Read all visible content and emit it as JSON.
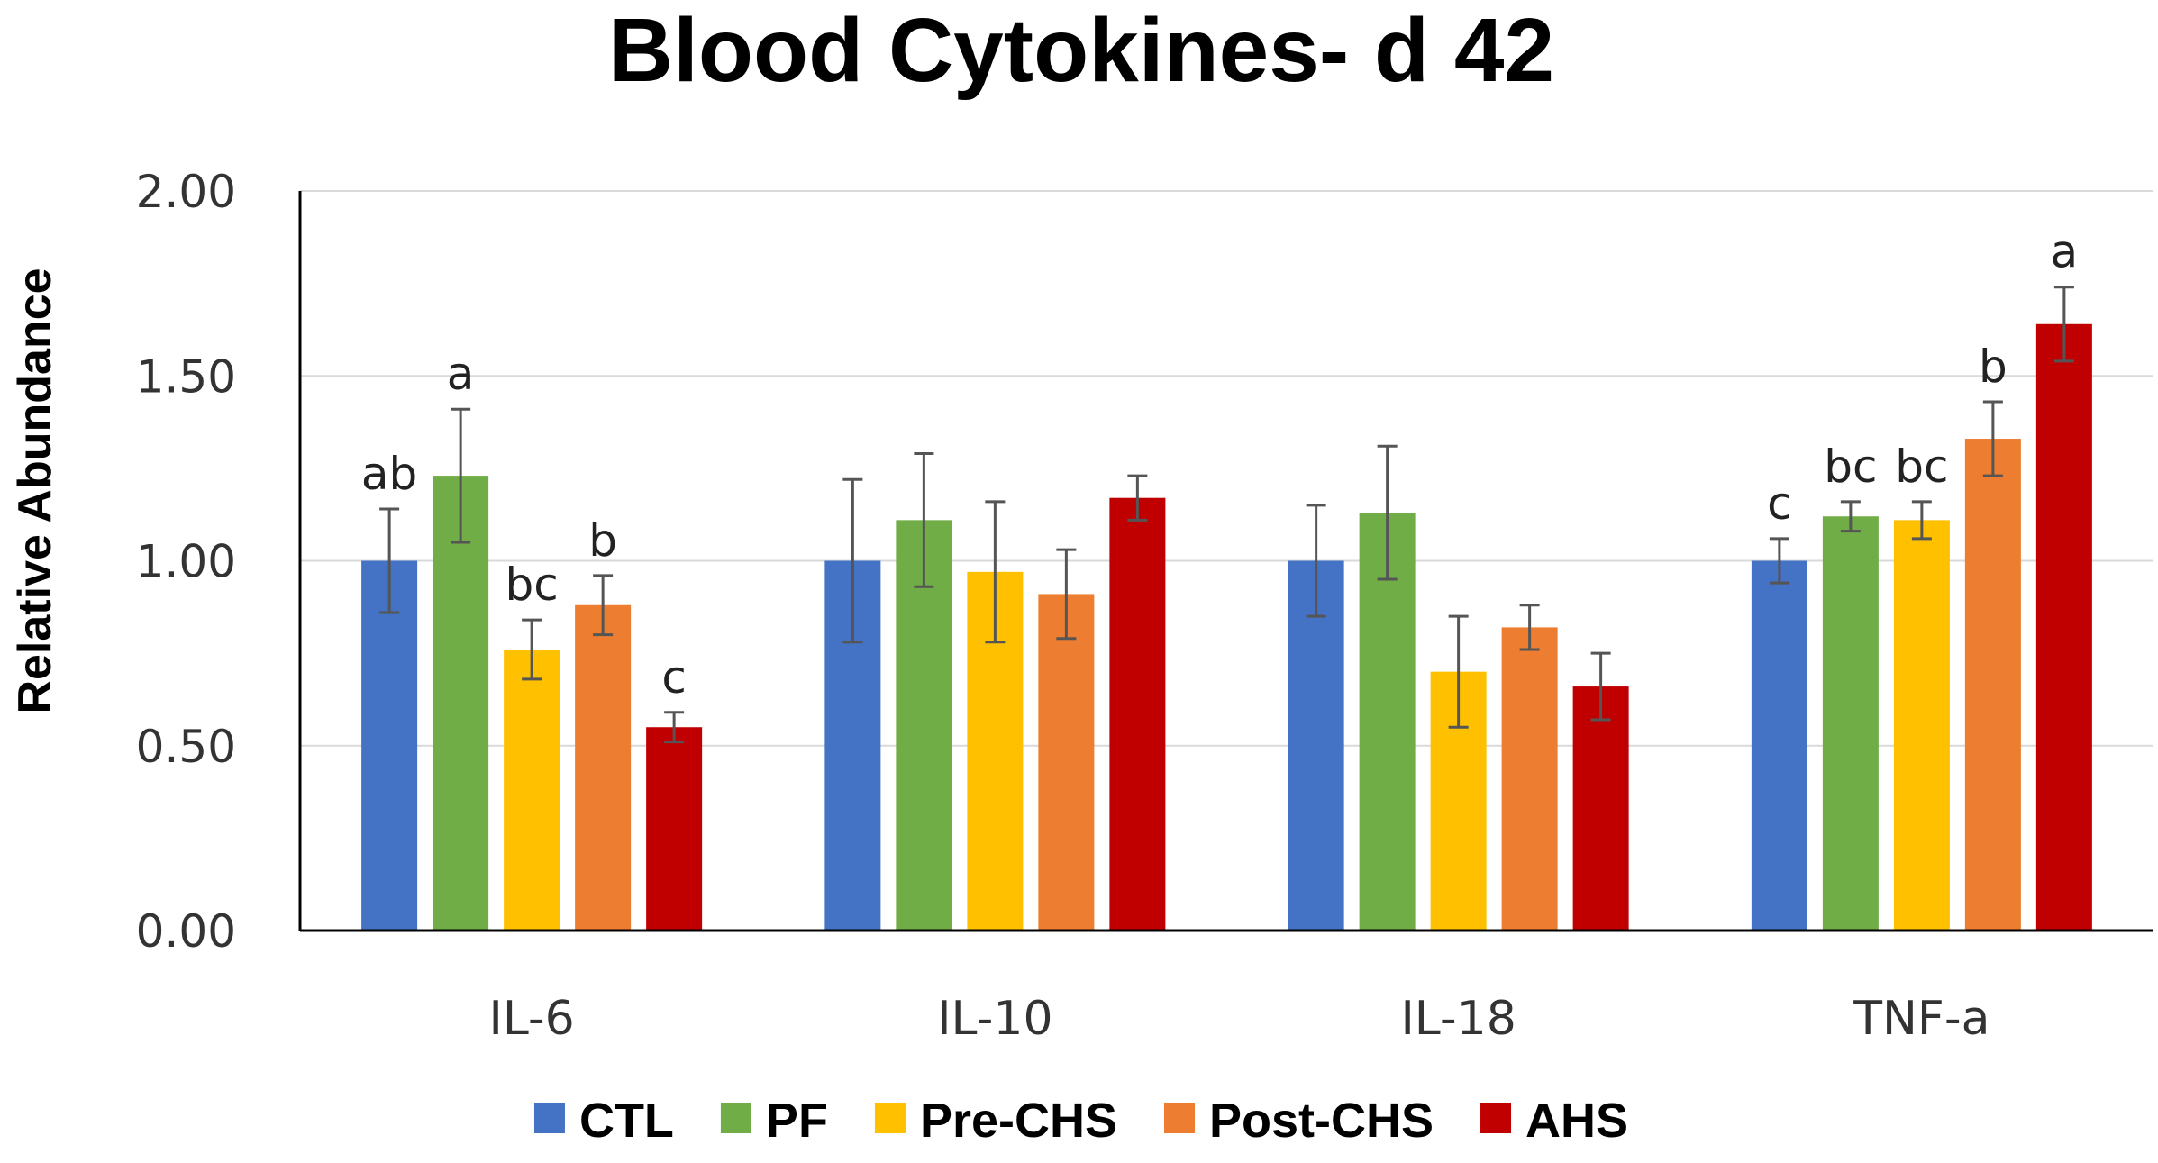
{
  "chart_data": {
    "type": "bar",
    "title": "Blood Cytokines- d 42",
    "xlabel": "",
    "ylabel": "Relative Abundance",
    "ylim": [
      0,
      2
    ],
    "yticks": [
      "0.00",
      "0.50",
      "1.00",
      "1.50",
      "2.00"
    ],
    "ytick_values": [
      0,
      0.5,
      1.0,
      1.5,
      2.0
    ],
    "grid": true,
    "legend_position": "bottom",
    "categories": [
      "IL-6",
      "IL-10",
      "IL-18",
      "TNF-a"
    ],
    "series": [
      {
        "name": "CTL",
        "color": "#4472C4",
        "values": [
          1.0,
          1.0,
          1.0,
          1.0
        ],
        "errors": [
          0.14,
          0.22,
          0.15,
          0.06
        ],
        "labels": [
          "ab",
          "",
          "",
          "c"
        ]
      },
      {
        "name": "PF",
        "color": "#70AD47",
        "values": [
          1.23,
          1.11,
          1.13,
          1.12
        ],
        "errors": [
          0.18,
          0.18,
          0.18,
          0.04
        ],
        "labels": [
          "a",
          "",
          "",
          "bc"
        ]
      },
      {
        "name": "Pre-CHS",
        "color": "#FFC000",
        "values": [
          0.76,
          0.97,
          0.7,
          1.11
        ],
        "errors": [
          0.08,
          0.19,
          0.15,
          0.05
        ],
        "labels": [
          "bc",
          "",
          "",
          "bc"
        ]
      },
      {
        "name": "Post-CHS",
        "color": "#ED7D31",
        "values": [
          0.88,
          0.91,
          0.82,
          1.33
        ],
        "errors": [
          0.08,
          0.12,
          0.06,
          0.1
        ],
        "labels": [
          "b",
          "",
          "",
          "b"
        ]
      },
      {
        "name": "AHS",
        "color": "#C00000",
        "values": [
          0.55,
          1.17,
          0.66,
          1.64
        ],
        "errors": [
          0.04,
          0.06,
          0.09,
          0.1
        ],
        "labels": [
          "c",
          "",
          "",
          "a"
        ]
      }
    ]
  }
}
